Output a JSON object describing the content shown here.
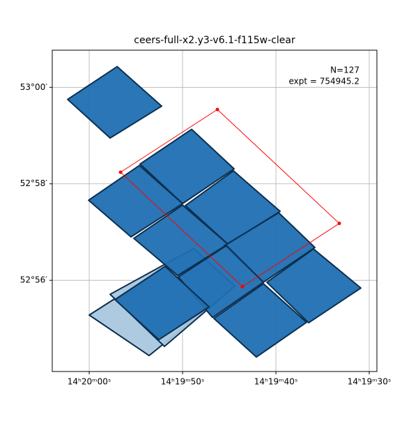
{
  "chart_data": {
    "type": "footprint",
    "title": "ceers-full-x2.y3-v6.1-f115w-clear",
    "annotations": [
      "N=127",
      "expt = 754945.2"
    ],
    "xlim": [
      51603.96,
      51569.18
    ],
    "ylim": [
      3174.11,
      3180.77
    ],
    "xticks": [
      {
        "value": 51600,
        "label": "14ʰ20ᵐ00ˢ"
      },
      {
        "value": 51590,
        "label": "14ʰ19ᵐ50ˢ"
      },
      {
        "value": 51580,
        "label": "14ʰ19ᵐ40ˢ"
      },
      {
        "value": 51570,
        "label": "14ʰ19ᵐ30ˢ"
      }
    ],
    "yticks": [
      {
        "value": 3176,
        "label": "52°56′"
      },
      {
        "value": 3178,
        "label": "52°58′"
      },
      {
        "value": 3180,
        "label": "53°00′"
      }
    ],
    "grid": true,
    "series": [
      {
        "color": "#aac7df",
        "fill": true,
        "polygons": [
          {
            "x": [
              51600.0,
              51592.01,
              51587.16,
              51593.58
            ],
            "y": [
              3175.28,
              3176.27,
              3175.45,
              3174.44
            ]
          },
          {
            "x": [
              51597.76,
              51588.81,
              51584.4,
              51591.94
            ],
            "y": [
              3175.71,
              3176.66,
              3175.88,
              3174.63
            ]
          }
        ]
      },
      {
        "color": "#1f6fb2",
        "fill": true,
        "polygons": [
          {
            "x": [
              51597.01,
              51592.24,
              51597.76,
              51602.31
            ],
            "y": [
              3180.43,
              3179.61,
              3178.95,
              3179.75
            ]
          },
          {
            "x": [
              51589.03,
              51584.48,
              51590.0,
              51594.55
            ],
            "y": [
              3179.13,
              3178.31,
              3177.59,
              3178.41
            ]
          },
          {
            "x": [
              51600.07,
              51594.63,
              51590.0,
              51595.52
            ],
            "y": [
              3177.66,
              3178.38,
              3177.59,
              3176.9
            ]
          },
          {
            "x": [
              51584.55,
              51579.55,
              51585.15,
              51589.7
            ],
            "y": [
              3178.27,
              3177.43,
              3176.75,
              3177.55
            ]
          },
          {
            "x": [
              51595.22,
              51590.0,
              51585.15,
              51590.52
            ],
            "y": [
              3176.87,
              3177.56,
              3176.75,
              3176.1
            ]
          },
          {
            "x": [
              51579.7,
              51575.82,
              51581.34,
              51585.52
            ],
            "y": [
              3177.4,
              3176.68,
              3175.96,
              3176.72
            ]
          },
          {
            "x": [
              51575.97,
              51570.9,
              51576.49,
              51580.97
            ],
            "y": [
              3176.65,
              3175.84,
              3175.12,
              3175.96
            ]
          },
          {
            "x": [
              51590.45,
              51585.3,
              51581.34,
              51586.79
            ],
            "y": [
              3176.07,
              3176.72,
              3175.96,
              3175.23
            ]
          },
          {
            "x": [
              51581.34,
              51576.72,
              51582.09,
              51586.64
            ],
            "y": [
              3175.93,
              3175.13,
              3174.41,
              3175.21
            ]
          },
          {
            "x": [
              51597.24,
              51591.87,
              51587.16,
              51592.54
            ],
            "y": [
              3175.6,
              3176.29,
              3175.45,
              3174.77
            ]
          }
        ]
      },
      {
        "color": "#ff0000",
        "fill": false,
        "polygons": [
          {
            "x": [
              51596.64,
              51586.27,
              51573.21,
              51583.58
            ],
            "y": [
              3178.24,
              3179.54,
              3177.18,
              3175.87
            ]
          }
        ]
      }
    ]
  }
}
